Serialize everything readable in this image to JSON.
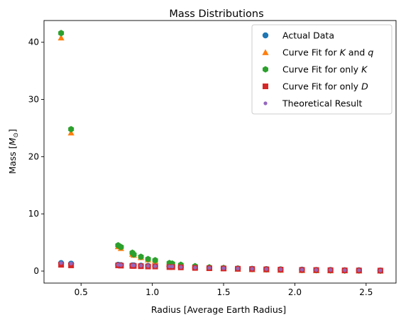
{
  "chart_data": {
    "type": "scatter",
    "title": "Mass Distributions",
    "xlabel": "Radius [Average Earth Radius]",
    "ylabel_main": "Mass [",
    "ylabel_italic": "M",
    "ylabel_sub": "⊙",
    "ylabel_close": "]",
    "xlim": [
      0.24,
      2.71
    ],
    "ylim": [
      -2.1,
      43.8
    ],
    "xticks": [
      0.5,
      1.0,
      1.5,
      2.0,
      2.5
    ],
    "xtick_labels": [
      "0.5",
      "1.0",
      "1.5",
      "2.0",
      "2.5"
    ],
    "yticks": [
      0,
      10,
      20,
      30,
      40
    ],
    "ytick_labels": [
      "0",
      "10",
      "20",
      "30",
      "40"
    ],
    "grid": false,
    "legend_position": "top-right",
    "series": [
      {
        "name": "Actual Data",
        "label_parts": [
          {
            "t": "Actual Data",
            "i": false
          }
        ],
        "marker": "circle",
        "color": "#1f77b4",
        "x": [
          0.36,
          0.43,
          0.76,
          0.78,
          0.86,
          0.87,
          0.92,
          0.97,
          1.02,
          1.12,
          1.14,
          1.2,
          1.3,
          1.4,
          1.5,
          1.6,
          1.7,
          1.8,
          1.9,
          2.05,
          2.15,
          2.25,
          2.35,
          2.45,
          2.6
        ],
        "y": [
          1.4,
          1.3,
          1.1,
          1.05,
          1.0,
          1.0,
          0.95,
          0.9,
          0.85,
          0.8,
          0.8,
          0.7,
          0.6,
          0.55,
          0.5,
          0.45,
          0.4,
          0.35,
          0.3,
          0.25,
          0.2,
          0.2,
          0.15,
          0.15,
          0.1
        ]
      },
      {
        "name": "Curve Fit for K and q",
        "label_parts": [
          {
            "t": "Curve Fit for ",
            "i": false
          },
          {
            "t": "K",
            "i": true
          },
          {
            "t": " and ",
            "i": false
          },
          {
            "t": "q",
            "i": true
          }
        ],
        "marker": "triangle",
        "color": "#ff7f0e",
        "x": [
          0.36,
          0.43,
          0.76,
          0.78,
          0.86,
          0.87,
          0.92,
          0.97,
          1.02,
          1.12,
          1.14,
          1.2,
          1.3,
          1.4,
          1.5,
          1.6,
          1.7,
          1.8,
          1.9,
          2.05,
          2.15,
          2.25,
          2.35,
          2.45,
          2.6
        ],
        "y": [
          40.8,
          24.2,
          4.3,
          4.0,
          3.0,
          2.8,
          2.4,
          2.0,
          1.8,
          1.3,
          1.2,
          1.0,
          0.8,
          0.6,
          0.5,
          0.4,
          0.3,
          0.25,
          0.2,
          0.15,
          0.12,
          0.1,
          0.1,
          0.08,
          0.05
        ]
      },
      {
        "name": "Curve Fit for only K",
        "label_parts": [
          {
            "t": "Curve Fit for only ",
            "i": false
          },
          {
            "t": "K",
            "i": true
          }
        ],
        "marker": "hexagon",
        "color": "#2ca02c",
        "x": [
          0.36,
          0.43,
          0.76,
          0.78,
          0.86,
          0.87,
          0.92,
          0.97,
          1.02,
          1.12,
          1.14,
          1.2,
          1.3,
          1.4,
          1.5,
          1.6,
          1.7,
          1.8,
          1.9,
          2.05,
          2.15,
          2.25,
          2.35,
          2.45,
          2.6
        ],
        "y": [
          41.6,
          24.8,
          4.5,
          4.2,
          3.2,
          2.9,
          2.5,
          2.1,
          1.9,
          1.4,
          1.3,
          1.1,
          0.85,
          0.65,
          0.55,
          0.45,
          0.35,
          0.3,
          0.25,
          0.18,
          0.15,
          0.12,
          0.1,
          0.09,
          0.06
        ]
      },
      {
        "name": "Curve Fit for only D",
        "label_parts": [
          {
            "t": "Curve Fit for only ",
            "i": false
          },
          {
            "t": "D",
            "i": true
          }
        ],
        "marker": "square",
        "color": "#d62728",
        "x": [
          0.36,
          0.43,
          0.76,
          0.78,
          0.86,
          0.87,
          0.92,
          0.97,
          1.02,
          1.12,
          1.14,
          1.2,
          1.3,
          1.4,
          1.5,
          1.6,
          1.7,
          1.8,
          1.9,
          2.05,
          2.15,
          2.25,
          2.35,
          2.45,
          2.6
        ],
        "y": [
          1.1,
          1.0,
          1.0,
          0.95,
          0.9,
          0.9,
          0.85,
          0.8,
          0.8,
          0.7,
          0.7,
          0.65,
          0.55,
          0.5,
          0.45,
          0.4,
          0.35,
          0.3,
          0.25,
          0.2,
          0.18,
          0.15,
          0.12,
          0.1,
          0.08
        ]
      },
      {
        "name": "Theoretical Result",
        "label_parts": [
          {
            "t": "Theoretical Result",
            "i": false
          }
        ],
        "marker": "smallcircle",
        "color": "#9467bd",
        "x": [
          0.36,
          0.43,
          0.76,
          0.78,
          0.86,
          0.87,
          0.92,
          0.97,
          1.02,
          1.12,
          1.14,
          1.2,
          1.3,
          1.4,
          1.5,
          1.6,
          1.7,
          1.8,
          1.9,
          2.05,
          2.15,
          2.25,
          2.35,
          2.45,
          2.6
        ],
        "y": [
          1.4,
          1.3,
          1.1,
          1.05,
          1.0,
          1.0,
          0.95,
          0.9,
          0.85,
          0.8,
          0.8,
          0.7,
          0.6,
          0.55,
          0.5,
          0.45,
          0.4,
          0.35,
          0.3,
          0.25,
          0.2,
          0.2,
          0.15,
          0.15,
          0.1
        ]
      }
    ]
  }
}
